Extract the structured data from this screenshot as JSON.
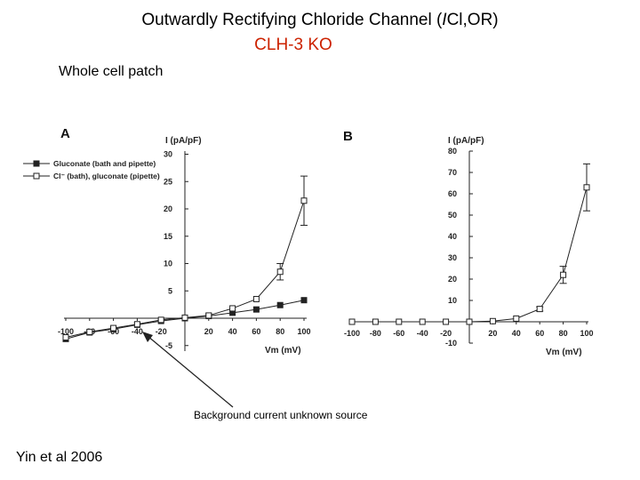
{
  "title_prefix": "Outwardly Rectifying Chloride Channel (",
  "title_symbol": "I",
  "title_suffix": "Cl,OR)",
  "title_line2": "CLH-3 KO",
  "subtitle": "Whole cell patch",
  "annotation": "Background current unknown source",
  "citation": "Yin et al 2006",
  "colors": {
    "accent_red": "#cc2200",
    "plot_ink": "#222222"
  },
  "chart_data": [
    {
      "panel": "A",
      "type": "line",
      "ylabel": "I (pA/pF)",
      "xlabel": "Vm (mV)",
      "xlim": [
        -100,
        100
      ],
      "ylim": [
        -5,
        30
      ],
      "x_ticks": [
        "-100",
        "-80",
        "-60",
        "-40",
        "-20",
        "20",
        "40",
        "60",
        "80",
        "100"
      ],
      "y_ticks": [
        "-5",
        "5",
        "10",
        "15",
        "20",
        "25",
        "30"
      ],
      "series": [
        {
          "name": "Gluconate (bath and pipette)",
          "marker": "filled-square",
          "x": [
            -100,
            -80,
            -60,
            -40,
            -20,
            0,
            20,
            40,
            60,
            80,
            100
          ],
          "y": [
            -3.8,
            -2.6,
            -2.0,
            -1.2,
            -0.5,
            0,
            0.4,
            1.0,
            1.6,
            2.4,
            3.3
          ]
        },
        {
          "name": "Cl⁻ (bath), gluconate (pipette)",
          "marker": "open-square",
          "x": [
            -100,
            -80,
            -60,
            -40,
            -20,
            0,
            20,
            40,
            60,
            80,
            100
          ],
          "y": [
            -3.5,
            -2.5,
            -1.8,
            -1.1,
            -0.3,
            0.1,
            0.5,
            1.8,
            3.5,
            8.5,
            21.5
          ],
          "err": [
            0,
            0,
            0,
            0,
            0,
            0,
            0,
            0,
            0,
            1.5,
            4.5
          ]
        }
      ]
    },
    {
      "panel": "B",
      "type": "line",
      "ylabel": "I (pA/pF)",
      "xlabel": "Vm (mV)",
      "xlim": [
        -100,
        100
      ],
      "ylim": [
        -10,
        80
      ],
      "x_ticks": [
        "-100",
        "-80",
        "-60",
        "-40",
        "-20",
        "20",
        "40",
        "60",
        "80",
        "100"
      ],
      "y_ticks": [
        "-10",
        "10",
        "20",
        "30",
        "40",
        "50",
        "60",
        "70",
        "80"
      ],
      "series": [
        {
          "name": "I",
          "marker": "open-square",
          "x": [
            -100,
            -80,
            -60,
            -40,
            -20,
            0,
            20,
            40,
            60,
            80,
            100
          ],
          "y": [
            0,
            0,
            0,
            0,
            0,
            0,
            0.3,
            1.5,
            6.0,
            22.0,
            63.0
          ],
          "err": [
            0,
            0,
            0,
            0,
            0,
            0,
            0,
            0,
            1.0,
            4.0,
            11.0
          ]
        }
      ]
    }
  ]
}
